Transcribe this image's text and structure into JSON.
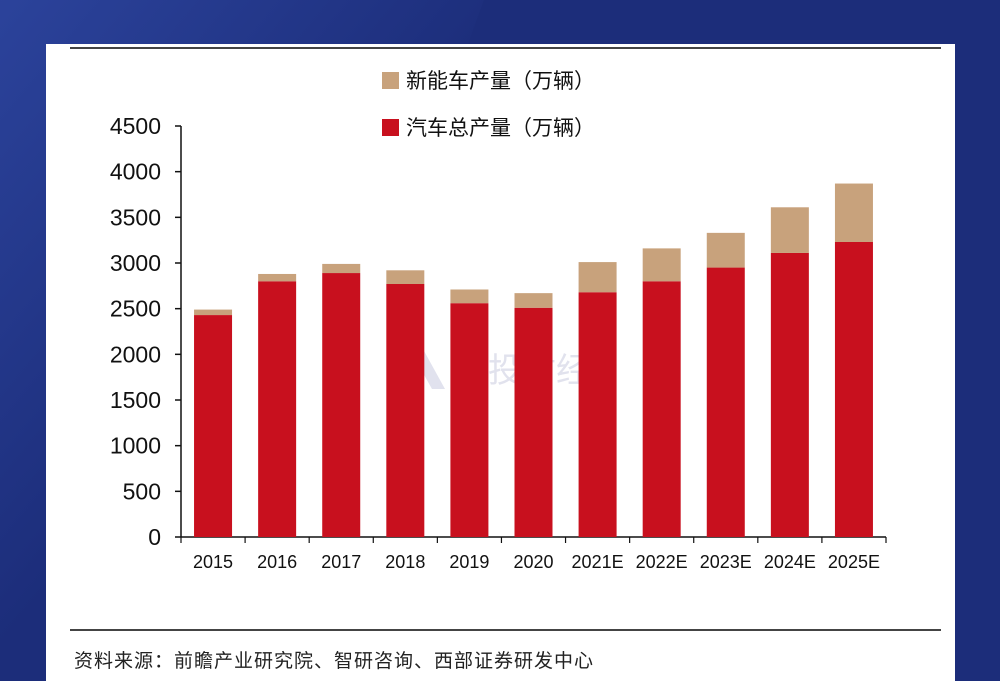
{
  "chart_data": {
    "type": "bar",
    "stacked": true,
    "categories": [
      "2015",
      "2016",
      "2017",
      "2018",
      "2019",
      "2020",
      "2021E",
      "2022E",
      "2023E",
      "2024E",
      "2025E"
    ],
    "series": [
      {
        "name": "汽车总产量（万辆）",
        "color": "#c8101e",
        "values": [
          2430,
          2800,
          2890,
          2770,
          2560,
          2510,
          2680,
          2800,
          2950,
          3110,
          3230
        ]
      },
      {
        "name": "新能车产量（万辆）",
        "color": "#c8a27c",
        "values": [
          60,
          80,
          100,
          150,
          150,
          160,
          330,
          360,
          380,
          500,
          640
        ]
      }
    ],
    "ylim": [
      0,
      4500
    ],
    "yticks": [
      "0",
      "500",
      "1000",
      "1500",
      "2000",
      "2500",
      "3000",
      "3500",
      "4000",
      "4500"
    ],
    "legend_position": "top-center",
    "grid": false
  },
  "watermark": "满投财经",
  "source_note": "资料来源：前瞻产业研究院、智研咨询、西部证券研发中心"
}
